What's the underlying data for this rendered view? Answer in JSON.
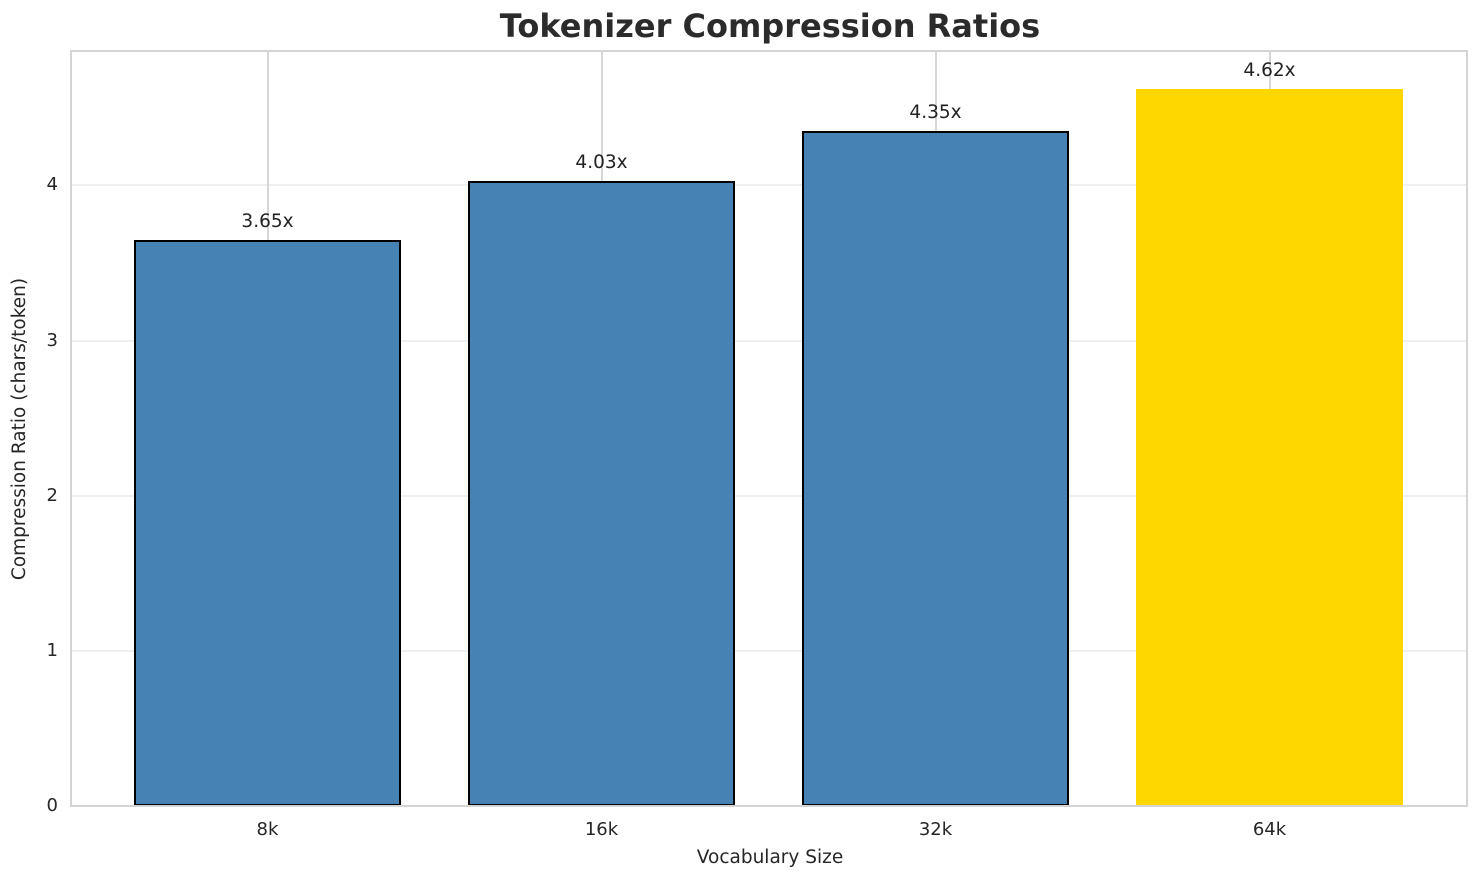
{
  "chart_data": {
    "type": "bar",
    "title": "Tokenizer Compression Ratios",
    "xlabel": "Vocabulary Size",
    "ylabel": "Compression Ratio (chars/token)",
    "categories": [
      "8k",
      "16k",
      "32k",
      "64k"
    ],
    "values": [
      3.65,
      4.03,
      4.35,
      4.62
    ],
    "value_labels": [
      "3.65x",
      "4.03x",
      "4.35x",
      "4.62x"
    ],
    "yticks": [
      0,
      1,
      2,
      3,
      4
    ],
    "ylim": [
      0,
      4.86
    ],
    "grid": true,
    "legend_shown": false,
    "bar_colors": [
      "#4682b4",
      "#4682b4",
      "#4682b4",
      "#ffd700"
    ],
    "bar_edge_colors": [
      "#000000",
      "#000000",
      "#000000",
      "none"
    ],
    "highlighted_category": "64k"
  },
  "colors": {
    "background": "#ffffff",
    "bar_blue": "#4682b4",
    "bar_gold": "#ffd700",
    "bar_edge": "#000000",
    "vertical_grid": "#d7d7d7",
    "horizontal_grid": "#efefef",
    "plot_border": "#d4d4d4",
    "text": "#262626",
    "title_text": "#2b2b2b"
  }
}
